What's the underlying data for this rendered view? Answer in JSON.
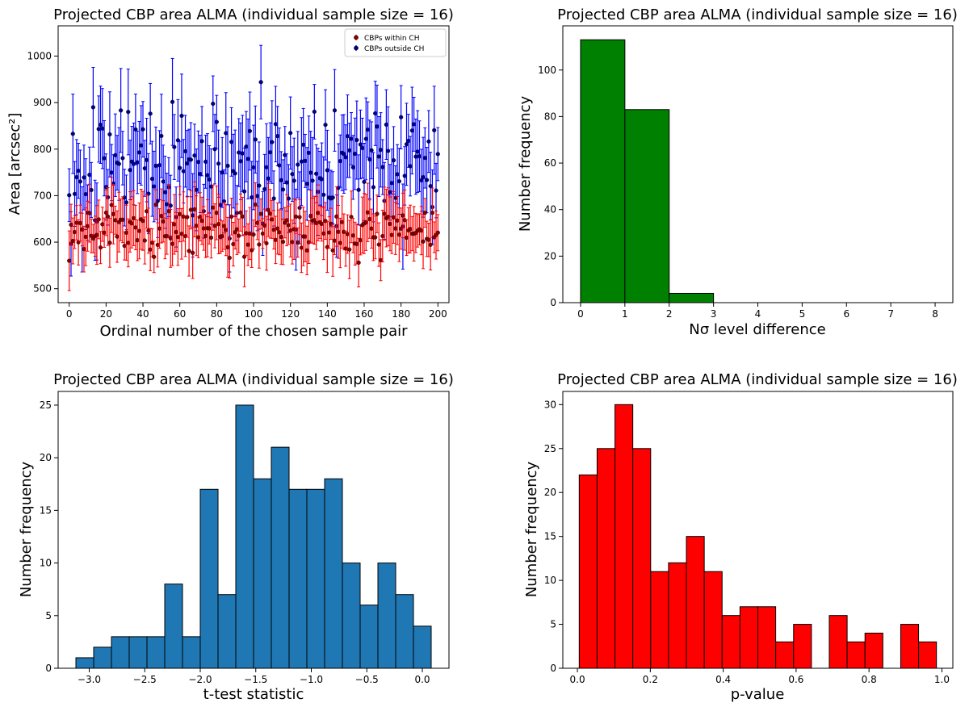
{
  "figure_title": "Projected CBP area ALMA (individual sample size = 16)",
  "chart_data": [
    {
      "id": "scatter",
      "type": "scatter",
      "title": "Projected CBP area ALMA (individual sample size = 16)",
      "xlabel": "Ordinal number of the chosen sample pair",
      "ylabel": "Area [arcsec²]",
      "xlim": [
        -6,
        206
      ],
      "ylim": [
        470,
        1065
      ],
      "xticks": [
        0,
        20,
        40,
        60,
        80,
        100,
        120,
        140,
        160,
        180,
        200
      ],
      "yticks": [
        500,
        600,
        700,
        800,
        900,
        1000
      ],
      "xtick_labels": [
        "0",
        "20",
        "40",
        "60",
        "80",
        "100",
        "120",
        "140",
        "160",
        "180",
        "200"
      ],
      "ytick_labels": [
        "500",
        "600",
        "700",
        "800",
        "900",
        "1000"
      ],
      "legend_position": "top-right",
      "series": [
        {
          "name": "CBPs within CH",
          "color": "#ff0000",
          "marker_color": "#8b0000",
          "count": 201,
          "mean_range": [
            555,
            690
          ],
          "error_half_width_range": [
            30,
            65
          ],
          "seed": 7
        },
        {
          "name": "CBPs outside CH",
          "color": "#0000ff",
          "marker_color": "#00008b",
          "count": 201,
          "mean_range": [
            580,
            944
          ],
          "error_half_width_range": [
            55,
            95
          ],
          "seed": 13,
          "highlight_points": [
            [
              13,
              890
            ],
            [
              104,
              944
            ]
          ]
        }
      ]
    },
    {
      "id": "nsigma",
      "type": "bar",
      "title": "Projected CBP area ALMA (individual sample size = 16)",
      "xlabel": "Nσ level difference",
      "ylabel": "Number frequency",
      "color": "#008000",
      "bin_edges": [
        0,
        1,
        2,
        3,
        4,
        5,
        6,
        7,
        8
      ],
      "values": [
        113,
        83,
        4,
        0,
        0,
        0,
        0,
        0
      ],
      "xlim": [
        -0.4,
        8.4
      ],
      "ylim": [
        0,
        119
      ],
      "xticks": [
        0,
        1,
        2,
        3,
        4,
        5,
        6,
        7,
        8
      ],
      "yticks": [
        0,
        20,
        40,
        60,
        80,
        100
      ],
      "xtick_labels": [
        "0",
        "1",
        "2",
        "3",
        "4",
        "5",
        "6",
        "7",
        "8"
      ],
      "ytick_labels": [
        "0",
        "20",
        "40",
        "60",
        "80",
        "100"
      ]
    },
    {
      "id": "ttest",
      "type": "bar",
      "title": "Projected CBP area ALMA (individual sample size = 16)",
      "xlabel": "t-test statistic",
      "ylabel": "Number frequency",
      "color": "#1f77b4",
      "bin_edges": [
        -3.12,
        -2.96,
        -2.8,
        -2.64,
        -2.48,
        -2.32,
        -2.16,
        -2.0,
        -1.84,
        -1.68,
        -1.52,
        -1.36,
        -1.2,
        -1.04,
        -0.88,
        -0.72,
        -0.56,
        -0.4,
        -0.24,
        -0.08,
        0.08
      ],
      "values": [
        1,
        2,
        3,
        3,
        3,
        8,
        3,
        17,
        7,
        25,
        18,
        21,
        17,
        17,
        18,
        10,
        6,
        10,
        7,
        4
      ],
      "xlim": [
        -3.28,
        0.24
      ],
      "ylim": [
        0,
        26.3
      ],
      "xticks": [
        -3.0,
        -2.5,
        -2.0,
        -1.5,
        -1.0,
        -0.5,
        0.0
      ],
      "yticks": [
        0,
        5,
        10,
        15,
        20,
        25
      ],
      "xtick_labels": [
        "−3.0",
        "−2.5",
        "−2.0",
        "−1.5",
        "−1.0",
        "−0.5",
        "0.0"
      ],
      "ytick_labels": [
        "0",
        "5",
        "10",
        "15",
        "20",
        "25"
      ]
    },
    {
      "id": "pvalue",
      "type": "bar",
      "title": "Projected CBP area ALMA (individual sample size = 16)",
      "xlabel": "p-value",
      "ylabel": "Number frequency",
      "color": "#ff0000",
      "bin_edges": [
        0.005,
        0.054,
        0.103,
        0.152,
        0.201,
        0.25,
        0.299,
        0.348,
        0.397,
        0.446,
        0.495,
        0.544,
        0.593,
        0.642,
        0.691,
        0.74,
        0.789,
        0.838,
        0.887,
        0.936,
        0.985
      ],
      "values": [
        22,
        25,
        30,
        25,
        11,
        12,
        15,
        11,
        6,
        7,
        7,
        3,
        5,
        0,
        6,
        3,
        4,
        0,
        5,
        3
      ],
      "xlim": [
        -0.04,
        1.03
      ],
      "ylim": [
        0,
        31.5
      ],
      "xticks": [
        0.0,
        0.2,
        0.4,
        0.6,
        0.8,
        1.0
      ],
      "yticks": [
        0,
        5,
        10,
        15,
        20,
        25,
        30
      ],
      "xtick_labels": [
        "0.0",
        "0.2",
        "0.4",
        "0.6",
        "0.8",
        "1.0"
      ],
      "ytick_labels": [
        "0",
        "5",
        "10",
        "15",
        "20",
        "25",
        "30"
      ]
    }
  ]
}
